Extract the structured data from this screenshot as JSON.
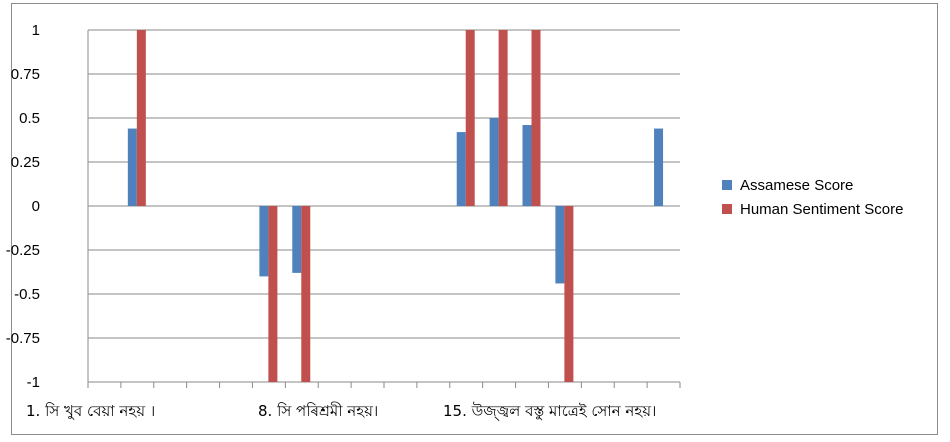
{
  "chart_data": {
    "type": "bar",
    "title": "",
    "xlabel": "",
    "ylabel": "",
    "ylim": [
      -1,
      1
    ],
    "yticks": [
      "1",
      "0.75",
      "0.5",
      "0.25",
      "0",
      "-0.25",
      "-0.5",
      "-0.75",
      "-1"
    ],
    "category_count": 18,
    "category_labels": [
      {
        "index": 1,
        "text": "1.   সি খুব বেয়া নহয় ।"
      },
      {
        "index": 8,
        "text": "8. সি পৰিশ্ৰমী নহয়।"
      },
      {
        "index": 15,
        "text": "15. উজ্জ্বল বস্তু মাত্ৰেই সোন নহয়।"
      }
    ],
    "legend_position": "right",
    "grid": "horizontal",
    "series": [
      {
        "name": "Assamese Score",
        "color": "#4f81bd",
        "values": [
          0,
          0.44,
          0,
          0,
          0,
          -0.4,
          -0.38,
          0,
          0,
          0,
          0,
          0.42,
          0.5,
          0.46,
          -0.44,
          0,
          0,
          0.44
        ]
      },
      {
        "name": "Human Sentiment Score",
        "color": "#c0504d",
        "values": [
          0,
          1,
          0,
          0,
          0,
          -1,
          -1,
          0,
          0,
          0,
          0,
          1,
          1,
          1,
          -1,
          0,
          0,
          0
        ]
      }
    ]
  }
}
